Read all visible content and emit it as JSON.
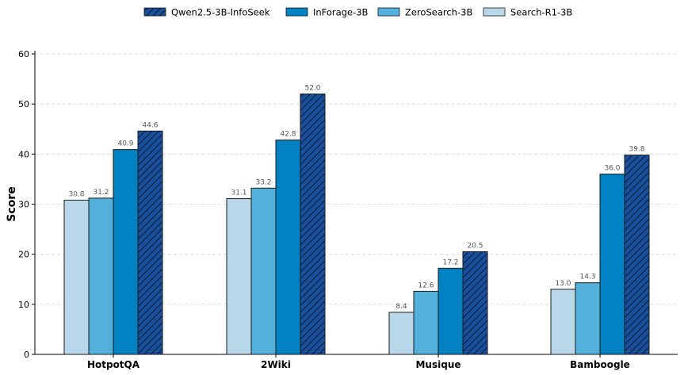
{
  "chart_data": {
    "type": "bar",
    "title": "",
    "xlabel": "",
    "ylabel": "Score",
    "ylim": [
      0,
      60
    ],
    "yticks": [
      0,
      10,
      20,
      30,
      40,
      50,
      60
    ],
    "grid": "y-dashed",
    "legend_position": "top-center",
    "categories": [
      "HotpotQA",
      "2Wiki",
      "Musique",
      "Bamboogle"
    ],
    "series": [
      {
        "name": "Search-R1-3B",
        "values": [
          30.8,
          31.1,
          8.4,
          13.0
        ],
        "labels": [
          "30.8",
          "31.1",
          "8.4",
          "13.0"
        ],
        "color": "#b8d7e8",
        "hatch": false
      },
      {
        "name": "ZeroSearch-3B",
        "values": [
          31.2,
          33.2,
          12.6,
          14.3
        ],
        "labels": [
          "31.2",
          "33.2",
          "12.6",
          "14.3"
        ],
        "color": "#52b0db",
        "hatch": false
      },
      {
        "name": "InForage-3B",
        "values": [
          40.9,
          42.8,
          17.2,
          36.0
        ],
        "labels": [
          "40.9",
          "42.8",
          "17.2",
          "36.0"
        ],
        "color": "#0282c3",
        "hatch": false
      },
      {
        "name": "Qwen2.5-3B-InfoSeek",
        "values": [
          44.6,
          52.0,
          20.5,
          39.8
        ],
        "labels": [
          "44.6",
          "52.0",
          "20.5",
          "39.8"
        ],
        "color": "#1a4f9c",
        "hatch": true
      }
    ],
    "legend_order": [
      "Qwen2.5-3B-InfoSeek",
      "InForage-3B",
      "ZeroSearch-3B",
      "Search-R1-3B"
    ]
  }
}
